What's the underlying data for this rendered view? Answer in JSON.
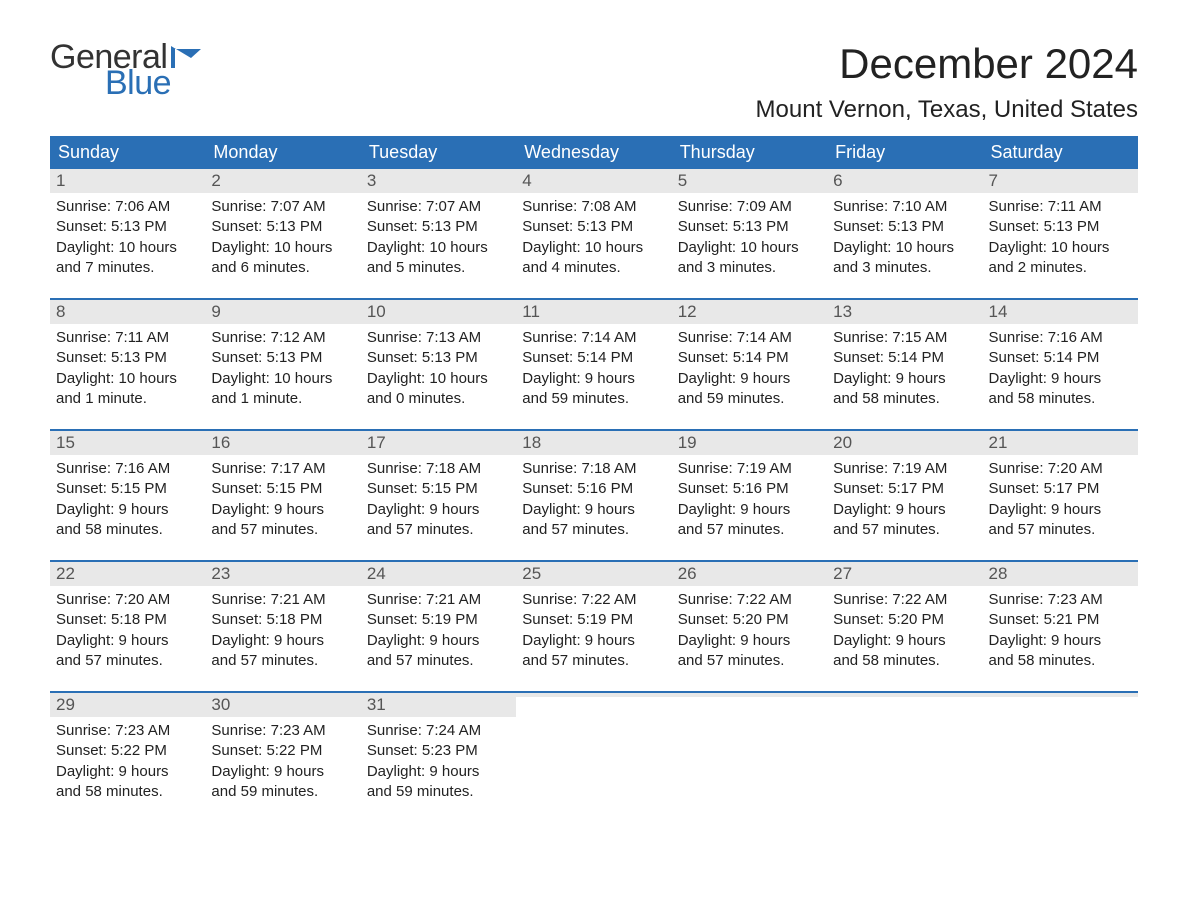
{
  "logo": {
    "text1": "General",
    "text2": "Blue",
    "color_dark": "#333333",
    "color_blue": "#2a6fb5"
  },
  "title": "December 2024",
  "location": "Mount Vernon, Texas, United States",
  "header_bg": "#2a6fb5",
  "header_fg": "#ffffff",
  "daynum_bg": "#e8e8e8",
  "week_border": "#2a6fb5",
  "weekdays": [
    "Sunday",
    "Monday",
    "Tuesday",
    "Wednesday",
    "Thursday",
    "Friday",
    "Saturday"
  ],
  "weeks": [
    [
      {
        "n": "1",
        "sr": "Sunrise: 7:06 AM",
        "ss": "Sunset: 5:13 PM",
        "dl1": "Daylight: 10 hours",
        "dl2": "and 7 minutes."
      },
      {
        "n": "2",
        "sr": "Sunrise: 7:07 AM",
        "ss": "Sunset: 5:13 PM",
        "dl1": "Daylight: 10 hours",
        "dl2": "and 6 minutes."
      },
      {
        "n": "3",
        "sr": "Sunrise: 7:07 AM",
        "ss": "Sunset: 5:13 PM",
        "dl1": "Daylight: 10 hours",
        "dl2": "and 5 minutes."
      },
      {
        "n": "4",
        "sr": "Sunrise: 7:08 AM",
        "ss": "Sunset: 5:13 PM",
        "dl1": "Daylight: 10 hours",
        "dl2": "and 4 minutes."
      },
      {
        "n": "5",
        "sr": "Sunrise: 7:09 AM",
        "ss": "Sunset: 5:13 PM",
        "dl1": "Daylight: 10 hours",
        "dl2": "and 3 minutes."
      },
      {
        "n": "6",
        "sr": "Sunrise: 7:10 AM",
        "ss": "Sunset: 5:13 PM",
        "dl1": "Daylight: 10 hours",
        "dl2": "and 3 minutes."
      },
      {
        "n": "7",
        "sr": "Sunrise: 7:11 AM",
        "ss": "Sunset: 5:13 PM",
        "dl1": "Daylight: 10 hours",
        "dl2": "and 2 minutes."
      }
    ],
    [
      {
        "n": "8",
        "sr": "Sunrise: 7:11 AM",
        "ss": "Sunset: 5:13 PM",
        "dl1": "Daylight: 10 hours",
        "dl2": "and 1 minute."
      },
      {
        "n": "9",
        "sr": "Sunrise: 7:12 AM",
        "ss": "Sunset: 5:13 PM",
        "dl1": "Daylight: 10 hours",
        "dl2": "and 1 minute."
      },
      {
        "n": "10",
        "sr": "Sunrise: 7:13 AM",
        "ss": "Sunset: 5:13 PM",
        "dl1": "Daylight: 10 hours",
        "dl2": "and 0 minutes."
      },
      {
        "n": "11",
        "sr": "Sunrise: 7:14 AM",
        "ss": "Sunset: 5:14 PM",
        "dl1": "Daylight: 9 hours",
        "dl2": "and 59 minutes."
      },
      {
        "n": "12",
        "sr": "Sunrise: 7:14 AM",
        "ss": "Sunset: 5:14 PM",
        "dl1": "Daylight: 9 hours",
        "dl2": "and 59 minutes."
      },
      {
        "n": "13",
        "sr": "Sunrise: 7:15 AM",
        "ss": "Sunset: 5:14 PM",
        "dl1": "Daylight: 9 hours",
        "dl2": "and 58 minutes."
      },
      {
        "n": "14",
        "sr": "Sunrise: 7:16 AM",
        "ss": "Sunset: 5:14 PM",
        "dl1": "Daylight: 9 hours",
        "dl2": "and 58 minutes."
      }
    ],
    [
      {
        "n": "15",
        "sr": "Sunrise: 7:16 AM",
        "ss": "Sunset: 5:15 PM",
        "dl1": "Daylight: 9 hours",
        "dl2": "and 58 minutes."
      },
      {
        "n": "16",
        "sr": "Sunrise: 7:17 AM",
        "ss": "Sunset: 5:15 PM",
        "dl1": "Daylight: 9 hours",
        "dl2": "and 57 minutes."
      },
      {
        "n": "17",
        "sr": "Sunrise: 7:18 AM",
        "ss": "Sunset: 5:15 PM",
        "dl1": "Daylight: 9 hours",
        "dl2": "and 57 minutes."
      },
      {
        "n": "18",
        "sr": "Sunrise: 7:18 AM",
        "ss": "Sunset: 5:16 PM",
        "dl1": "Daylight: 9 hours",
        "dl2": "and 57 minutes."
      },
      {
        "n": "19",
        "sr": "Sunrise: 7:19 AM",
        "ss": "Sunset: 5:16 PM",
        "dl1": "Daylight: 9 hours",
        "dl2": "and 57 minutes."
      },
      {
        "n": "20",
        "sr": "Sunrise: 7:19 AM",
        "ss": "Sunset: 5:17 PM",
        "dl1": "Daylight: 9 hours",
        "dl2": "and 57 minutes."
      },
      {
        "n": "21",
        "sr": "Sunrise: 7:20 AM",
        "ss": "Sunset: 5:17 PM",
        "dl1": "Daylight: 9 hours",
        "dl2": "and 57 minutes."
      }
    ],
    [
      {
        "n": "22",
        "sr": "Sunrise: 7:20 AM",
        "ss": "Sunset: 5:18 PM",
        "dl1": "Daylight: 9 hours",
        "dl2": "and 57 minutes."
      },
      {
        "n": "23",
        "sr": "Sunrise: 7:21 AM",
        "ss": "Sunset: 5:18 PM",
        "dl1": "Daylight: 9 hours",
        "dl2": "and 57 minutes."
      },
      {
        "n": "24",
        "sr": "Sunrise: 7:21 AM",
        "ss": "Sunset: 5:19 PM",
        "dl1": "Daylight: 9 hours",
        "dl2": "and 57 minutes."
      },
      {
        "n": "25",
        "sr": "Sunrise: 7:22 AM",
        "ss": "Sunset: 5:19 PM",
        "dl1": "Daylight: 9 hours",
        "dl2": "and 57 minutes."
      },
      {
        "n": "26",
        "sr": "Sunrise: 7:22 AM",
        "ss": "Sunset: 5:20 PM",
        "dl1": "Daylight: 9 hours",
        "dl2": "and 57 minutes."
      },
      {
        "n": "27",
        "sr": "Sunrise: 7:22 AM",
        "ss": "Sunset: 5:20 PM",
        "dl1": "Daylight: 9 hours",
        "dl2": "and 58 minutes."
      },
      {
        "n": "28",
        "sr": "Sunrise: 7:23 AM",
        "ss": "Sunset: 5:21 PM",
        "dl1": "Daylight: 9 hours",
        "dl2": "and 58 minutes."
      }
    ],
    [
      {
        "n": "29",
        "sr": "Sunrise: 7:23 AM",
        "ss": "Sunset: 5:22 PM",
        "dl1": "Daylight: 9 hours",
        "dl2": "and 58 minutes."
      },
      {
        "n": "30",
        "sr": "Sunrise: 7:23 AM",
        "ss": "Sunset: 5:22 PM",
        "dl1": "Daylight: 9 hours",
        "dl2": "and 59 minutes."
      },
      {
        "n": "31",
        "sr": "Sunrise: 7:24 AM",
        "ss": "Sunset: 5:23 PM",
        "dl1": "Daylight: 9 hours",
        "dl2": "and 59 minutes."
      },
      {
        "empty": true
      },
      {
        "empty": true
      },
      {
        "empty": true
      },
      {
        "empty": true
      }
    ]
  ]
}
